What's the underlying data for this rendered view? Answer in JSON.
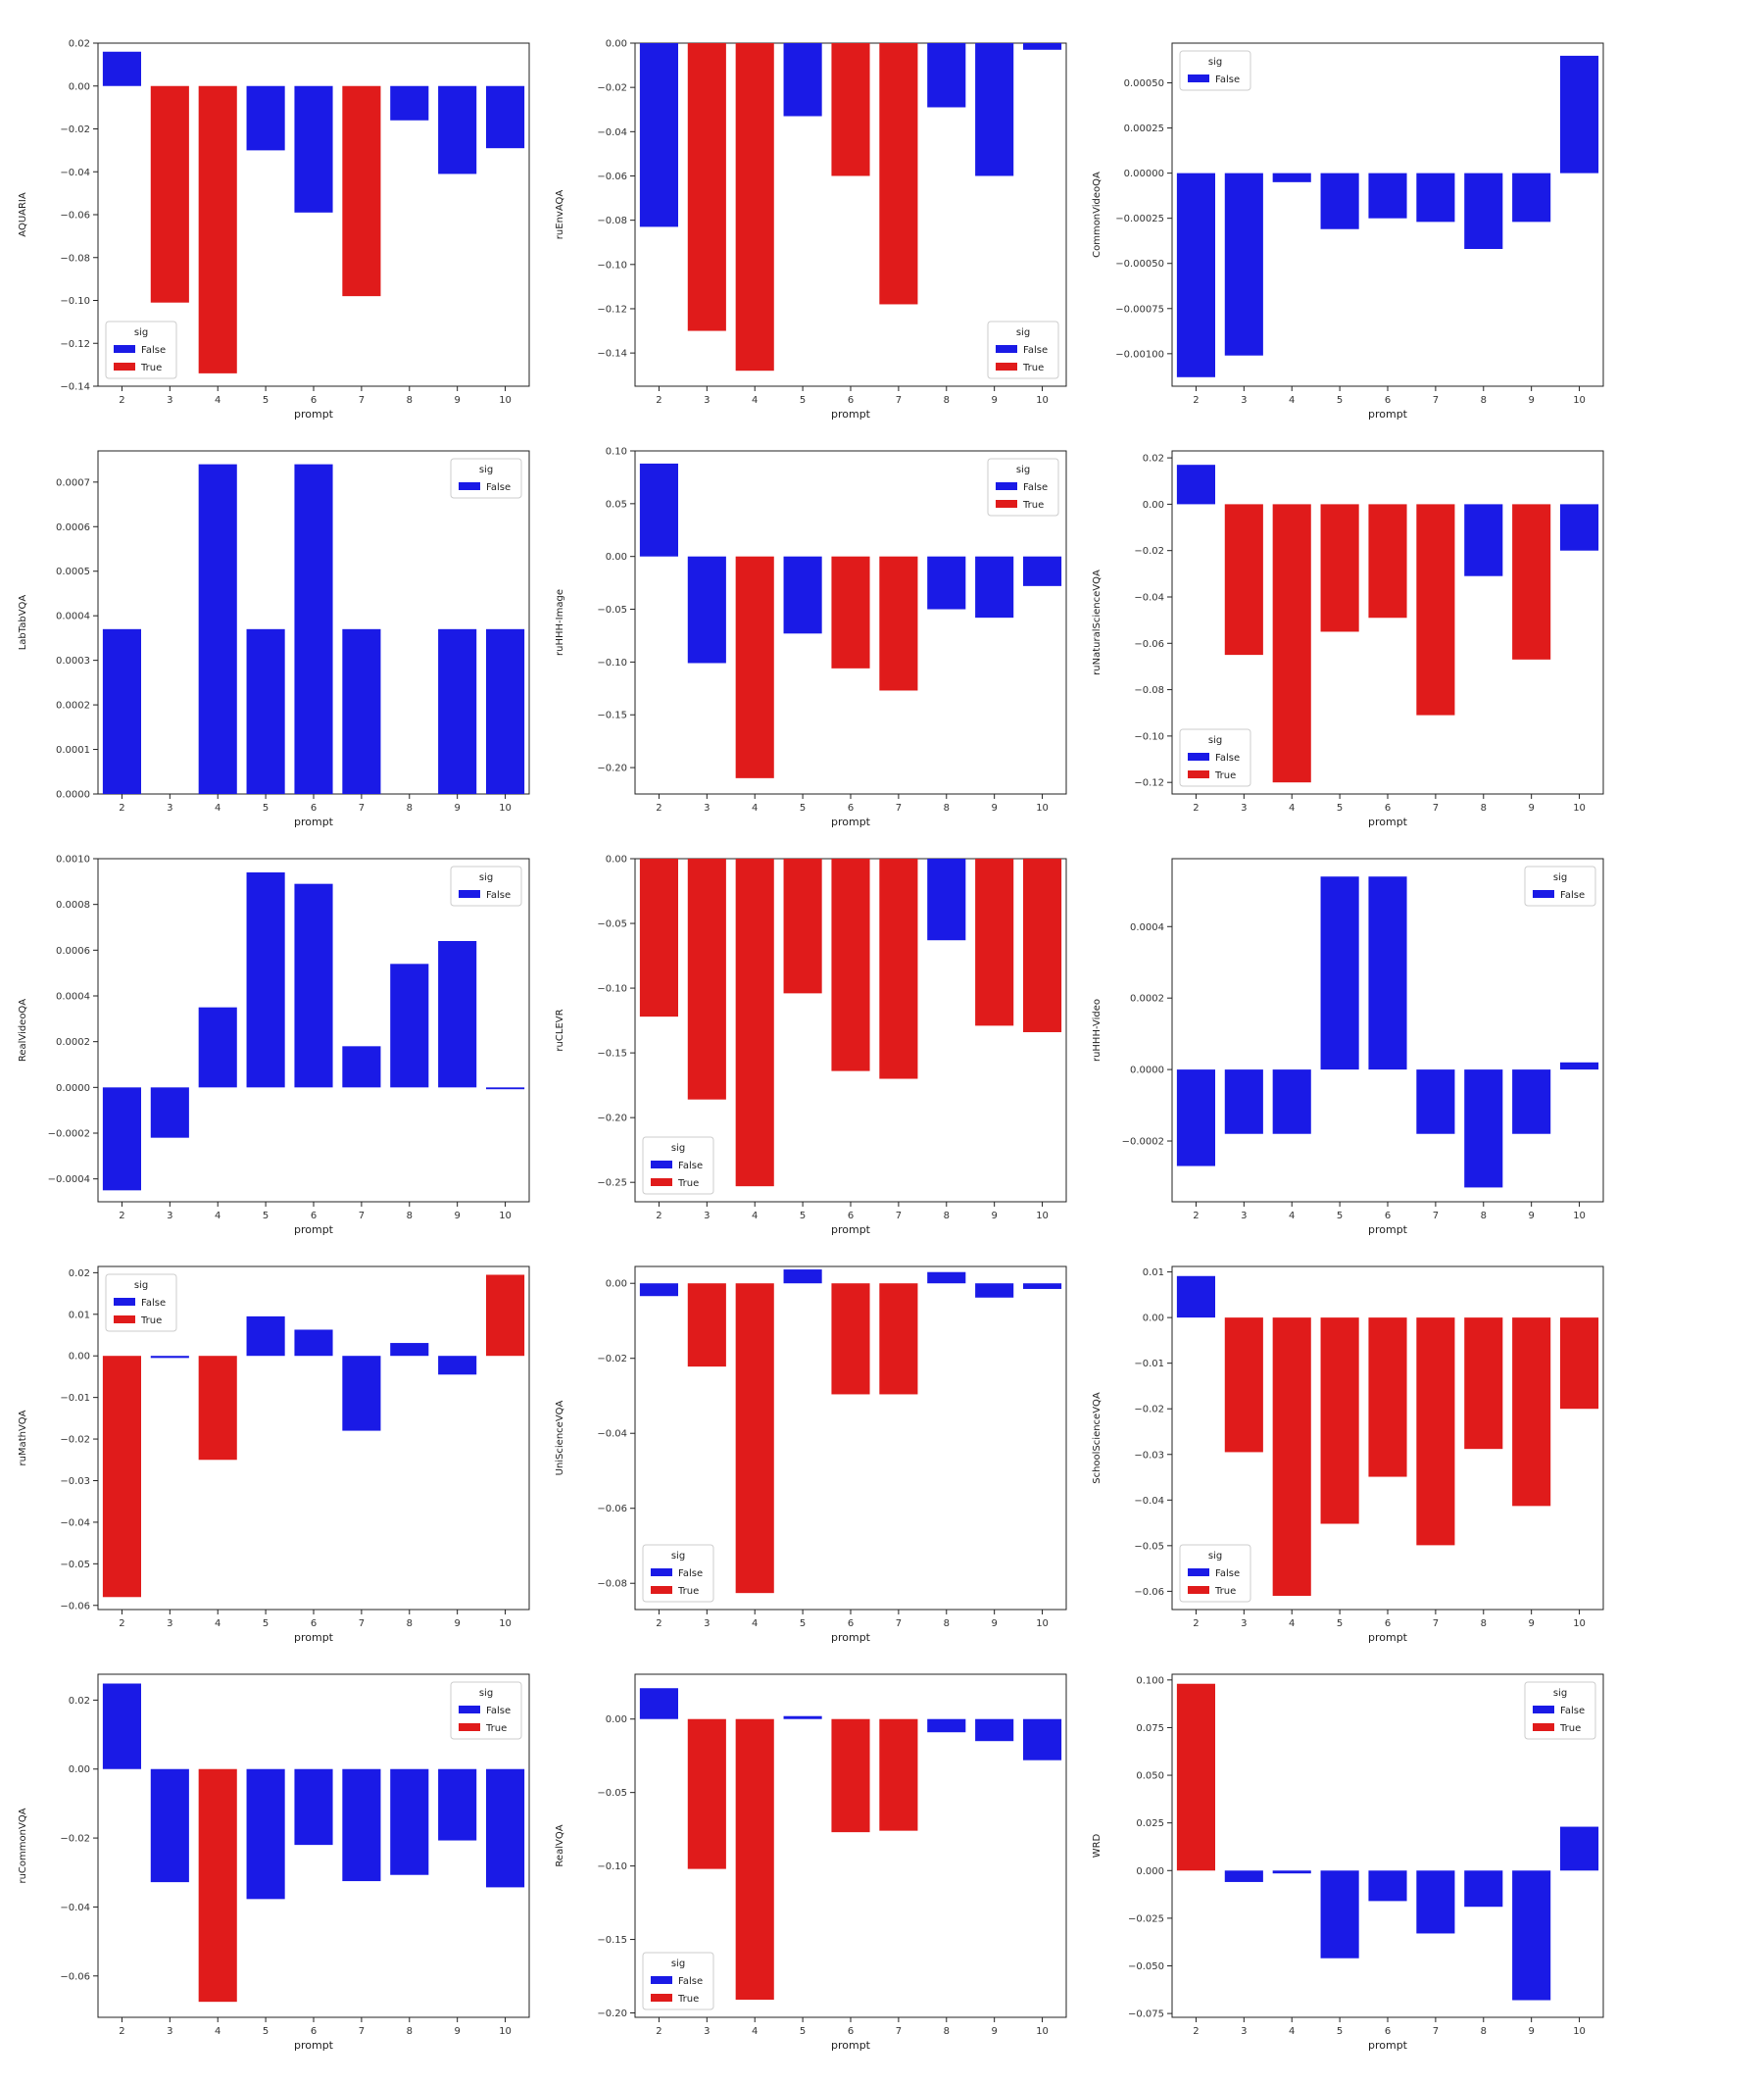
{
  "colors": {
    "false": "#1a1ae6",
    "true": "#e01b1b",
    "axis": "#222222",
    "legend_border": "#cccccc"
  },
  "legend_labels": {
    "title": "sig",
    "false": "False",
    "true": "True"
  },
  "chart_data": [
    {
      "type": "bar",
      "xlabel": "prompt",
      "ylabel": "AQUARIA",
      "categories": [
        "2",
        "3",
        "4",
        "5",
        "6",
        "7",
        "8",
        "9",
        "10"
      ],
      "values": [
        0.016,
        -0.101,
        -0.134,
        -0.03,
        -0.059,
        -0.098,
        -0.016,
        -0.041,
        -0.029
      ],
      "sig": [
        false,
        true,
        true,
        false,
        false,
        true,
        false,
        false,
        false
      ],
      "ylim": [
        -0.14,
        0.02
      ],
      "yticks": [
        0.02,
        0.0,
        -0.02,
        -0.04,
        -0.06,
        -0.08,
        -0.1,
        -0.12,
        -0.14
      ],
      "ytick_labels": [
        "0.02",
        "0.00",
        "−0.02",
        "−0.04",
        "−0.06",
        "−0.08",
        "−0.10",
        "−0.12",
        "−0.14"
      ],
      "legend": "lower-left",
      "legend_entries": [
        "false",
        "true"
      ]
    },
    {
      "type": "bar",
      "xlabel": "prompt",
      "ylabel": "ruEnvAQA",
      "categories": [
        "2",
        "3",
        "4",
        "5",
        "6",
        "7",
        "8",
        "9",
        "10"
      ],
      "values": [
        -0.083,
        -0.13,
        -0.148,
        -0.033,
        -0.06,
        -0.118,
        -0.029,
        -0.06,
        -0.003
      ],
      "sig": [
        false,
        true,
        true,
        false,
        true,
        true,
        false,
        false,
        false
      ],
      "ylim": [
        -0.155,
        0.0
      ],
      "yticks": [
        0.0,
        -0.02,
        -0.04,
        -0.06,
        -0.08,
        -0.1,
        -0.12,
        -0.14
      ],
      "ytick_labels": [
        "0.00",
        "−0.02",
        "−0.04",
        "−0.06",
        "−0.08",
        "−0.10",
        "−0.12",
        "−0.14"
      ],
      "legend": "lower-right",
      "legend_entries": [
        "false",
        "true"
      ]
    },
    {
      "type": "bar",
      "xlabel": "prompt",
      "ylabel": "CommonVideoQA",
      "categories": [
        "2",
        "3",
        "4",
        "5",
        "6",
        "7",
        "8",
        "9",
        "10"
      ],
      "values": [
        -0.00113,
        -0.00101,
        -5e-05,
        -0.00031,
        -0.00025,
        -0.00027,
        -0.00042,
        -0.00027,
        0.00065
      ],
      "sig": [
        false,
        false,
        false,
        false,
        false,
        false,
        false,
        false,
        false
      ],
      "ylim": [
        -0.00118,
        0.00072
      ],
      "yticks": [
        0.0005,
        0.00025,
        0.0,
        -0.00025,
        -0.0005,
        -0.00075,
        -0.001
      ],
      "ytick_labels": [
        "0.00050",
        "0.00025",
        "0.00000",
        "−0.00025",
        "−0.00050",
        "−0.00075",
        "−0.00100"
      ],
      "legend": "upper-left",
      "legend_entries": [
        "false"
      ]
    },
    {
      "type": "bar",
      "xlabel": "prompt",
      "ylabel": "LabTabVQA",
      "categories": [
        "2",
        "3",
        "4",
        "5",
        "6",
        "7",
        "8",
        "9",
        "10"
      ],
      "values": [
        0.00037,
        0.0,
        0.00074,
        0.00037,
        0.00074,
        0.00037,
        0.0,
        0.00037,
        0.00037
      ],
      "sig": [
        false,
        false,
        false,
        false,
        false,
        false,
        false,
        false,
        false
      ],
      "ylim": [
        0.0,
        0.00077
      ],
      "yticks": [
        0.0,
        0.0001,
        0.0002,
        0.0003,
        0.0004,
        0.0005,
        0.0006,
        0.0007
      ],
      "ytick_labels": [
        "0.0000",
        "0.0001",
        "0.0002",
        "0.0003",
        "0.0004",
        "0.0005",
        "0.0006",
        "0.0007"
      ],
      "legend": "upper-right",
      "legend_entries": [
        "false"
      ]
    },
    {
      "type": "bar",
      "xlabel": "prompt",
      "ylabel": "ruHHH-Image",
      "categories": [
        "2",
        "3",
        "4",
        "5",
        "6",
        "7",
        "8",
        "9",
        "10"
      ],
      "values": [
        0.088,
        -0.101,
        -0.21,
        -0.073,
        -0.106,
        -0.127,
        -0.05,
        -0.058,
        -0.028
      ],
      "sig": [
        false,
        false,
        true,
        false,
        true,
        true,
        false,
        false,
        false
      ],
      "ylim": [
        -0.225,
        0.1
      ],
      "yticks": [
        0.1,
        0.05,
        0.0,
        -0.05,
        -0.1,
        -0.15,
        -0.2
      ],
      "ytick_labels": [
        "0.10",
        "0.05",
        "0.00",
        "−0.05",
        "−0.10",
        "−0.15",
        "−0.20"
      ],
      "legend": "upper-right",
      "legend_entries": [
        "false",
        "true"
      ]
    },
    {
      "type": "bar",
      "xlabel": "prompt",
      "ylabel": "ruNaturalScienceVQA",
      "categories": [
        "2",
        "3",
        "4",
        "5",
        "6",
        "7",
        "8",
        "9",
        "10"
      ],
      "values": [
        0.017,
        -0.065,
        -0.12,
        -0.055,
        -0.049,
        -0.091,
        -0.031,
        -0.067,
        -0.02
      ],
      "sig": [
        false,
        true,
        true,
        true,
        true,
        true,
        false,
        true,
        false
      ],
      "ylim": [
        -0.125,
        0.023
      ],
      "yticks": [
        0.02,
        0.0,
        -0.02,
        -0.04,
        -0.06,
        -0.08,
        -0.1,
        -0.12
      ],
      "ytick_labels": [
        "0.02",
        "0.00",
        "−0.02",
        "−0.04",
        "−0.06",
        "−0.08",
        "−0.10",
        "−0.12"
      ],
      "legend": "lower-left",
      "legend_entries": [
        "false",
        "true"
      ]
    },
    {
      "type": "bar",
      "xlabel": "prompt",
      "ylabel": "RealVideoQA",
      "categories": [
        "2",
        "3",
        "4",
        "5",
        "6",
        "7",
        "8",
        "9",
        "10"
      ],
      "values": [
        -0.00045,
        -0.00022,
        0.00035,
        0.00094,
        0.00089,
        0.00018,
        0.00054,
        0.00064,
        -8e-06
      ],
      "sig": [
        false,
        false,
        false,
        false,
        false,
        false,
        false,
        false,
        false
      ],
      "ylim": [
        -0.0005,
        0.001
      ],
      "yticks": [
        0.001,
        0.0008,
        0.0006,
        0.0004,
        0.0002,
        0.0,
        -0.0002,
        -0.0004
      ],
      "ytick_labels": [
        "0.0010",
        "0.0008",
        "0.0006",
        "0.0004",
        "0.0002",
        "0.0000",
        "−0.0002",
        "−0.0004"
      ],
      "legend": "upper-right",
      "legend_entries": [
        "false"
      ]
    },
    {
      "type": "bar",
      "xlabel": "prompt",
      "ylabel": "ruCLEVR",
      "categories": [
        "2",
        "3",
        "4",
        "5",
        "6",
        "7",
        "8",
        "9",
        "10"
      ],
      "values": [
        -0.122,
        -0.186,
        -0.253,
        -0.104,
        -0.164,
        -0.17,
        -0.063,
        -0.129,
        -0.134
      ],
      "sig": [
        true,
        true,
        true,
        true,
        true,
        true,
        false,
        true,
        true
      ],
      "ylim": [
        -0.265,
        0.0
      ],
      "yticks": [
        0.0,
        -0.05,
        -0.1,
        -0.15,
        -0.2,
        -0.25
      ],
      "ytick_labels": [
        "0.00",
        "−0.05",
        "−0.10",
        "−0.15",
        "−0.20",
        "−0.25"
      ],
      "legend": "lower-left",
      "legend_entries": [
        "false",
        "true"
      ]
    },
    {
      "type": "bar",
      "xlabel": "prompt",
      "ylabel": "ruHHH-Video",
      "categories": [
        "2",
        "3",
        "4",
        "5",
        "6",
        "7",
        "8",
        "9",
        "10"
      ],
      "values": [
        -0.00027,
        -0.00018,
        -0.00018,
        0.00054,
        0.00054,
        -0.00018,
        -0.00033,
        -0.00018,
        2e-05
      ],
      "sig": [
        false,
        false,
        false,
        false,
        false,
        false,
        false,
        false,
        false
      ],
      "ylim": [
        -0.00037,
        0.00059
      ],
      "yticks": [
        0.0004,
        0.0002,
        0.0,
        -0.0002
      ],
      "ytick_labels": [
        "0.0004",
        "0.0002",
        "0.0000",
        "−0.0002"
      ],
      "legend": "upper-right",
      "legend_entries": [
        "false"
      ]
    },
    {
      "type": "bar",
      "xlabel": "prompt",
      "ylabel": "ruMathVQA",
      "categories": [
        "2",
        "3",
        "4",
        "5",
        "6",
        "7",
        "8",
        "9",
        "10"
      ],
      "values": [
        -0.058,
        -0.0005,
        -0.025,
        0.0095,
        0.0063,
        -0.018,
        0.0031,
        -0.0045,
        0.0195
      ],
      "sig": [
        true,
        false,
        true,
        false,
        false,
        false,
        false,
        false,
        true
      ],
      "ylim": [
        -0.061,
        0.0215
      ],
      "yticks": [
        0.02,
        0.01,
        0.0,
        -0.01,
        -0.02,
        -0.03,
        -0.04,
        -0.05,
        -0.06
      ],
      "ytick_labels": [
        "0.02",
        "0.01",
        "0.00",
        "−0.01",
        "−0.02",
        "−0.03",
        "−0.04",
        "−0.05",
        "−0.06"
      ],
      "legend": "upper-left",
      "legend_entries": [
        "false",
        "true"
      ]
    },
    {
      "type": "bar",
      "xlabel": "prompt",
      "ylabel": "UniScienceVQA",
      "categories": [
        "2",
        "3",
        "4",
        "5",
        "6",
        "7",
        "8",
        "9",
        "10"
      ],
      "values": [
        -0.0034,
        -0.0222,
        -0.0826,
        0.0037,
        -0.0296,
        -0.0296,
        0.003,
        -0.0038,
        -0.0015
      ],
      "sig": [
        false,
        true,
        true,
        false,
        true,
        true,
        false,
        false,
        false
      ],
      "ylim": [
        -0.087,
        0.0045
      ],
      "yticks": [
        0.0,
        -0.02,
        -0.04,
        -0.06,
        -0.08
      ],
      "ytick_labels": [
        "0.00",
        "−0.02",
        "−0.04",
        "−0.06",
        "−0.08"
      ],
      "legend": "lower-left",
      "legend_entries": [
        "false",
        "true"
      ]
    },
    {
      "type": "bar",
      "xlabel": "prompt",
      "ylabel": "SchoolScienceVQA",
      "categories": [
        "2",
        "3",
        "4",
        "5",
        "6",
        "7",
        "8",
        "9",
        "10"
      ],
      "values": [
        0.0091,
        -0.0295,
        -0.061,
        -0.0452,
        -0.0349,
        -0.0499,
        -0.0288,
        -0.0413,
        -0.02
      ],
      "sig": [
        false,
        true,
        true,
        true,
        true,
        true,
        true,
        true,
        true
      ],
      "ylim": [
        -0.064,
        0.0112
      ],
      "yticks": [
        0.01,
        0.0,
        -0.01,
        -0.02,
        -0.03,
        -0.04,
        -0.05,
        -0.06
      ],
      "ytick_labels": [
        "0.01",
        "0.00",
        "−0.01",
        "−0.02",
        "−0.03",
        "−0.04",
        "−0.05",
        "−0.06"
      ],
      "legend": "lower-left",
      "legend_entries": [
        "false",
        "true"
      ]
    },
    {
      "type": "bar",
      "xlabel": "prompt",
      "ylabel": "ruCommonVQA",
      "categories": [
        "2",
        "3",
        "4",
        "5",
        "6",
        "7",
        "8",
        "9",
        "10"
      ],
      "values": [
        0.0248,
        -0.0328,
        -0.0675,
        -0.0377,
        -0.022,
        -0.0325,
        -0.0307,
        -0.0207,
        -0.0343
      ],
      "sig": [
        false,
        false,
        true,
        false,
        false,
        false,
        false,
        false,
        false
      ],
      "ylim": [
        -0.072,
        0.0275
      ],
      "yticks": [
        0.02,
        0.0,
        -0.02,
        -0.04,
        -0.06
      ],
      "ytick_labels": [
        "0.02",
        "0.00",
        "−0.02",
        "−0.04",
        "−0.06"
      ],
      "legend": "upper-right",
      "legend_entries": [
        "false",
        "true"
      ]
    },
    {
      "type": "bar",
      "xlabel": "prompt",
      "ylabel": "RealVQA",
      "categories": [
        "2",
        "3",
        "4",
        "5",
        "6",
        "7",
        "8",
        "9",
        "10"
      ],
      "values": [
        0.021,
        -0.102,
        -0.191,
        0.002,
        -0.077,
        -0.076,
        -0.009,
        -0.015,
        -0.028
      ],
      "sig": [
        false,
        true,
        true,
        false,
        true,
        true,
        false,
        false,
        false
      ],
      "ylim": [
        -0.203,
        0.0305
      ],
      "yticks": [
        0.0,
        -0.05,
        -0.1,
        -0.15,
        -0.2
      ],
      "ytick_labels": [
        "0.00",
        "−0.05",
        "−0.10",
        "−0.15",
        "−0.20"
      ],
      "legend": "lower-left",
      "legend_entries": [
        "false",
        "true"
      ]
    },
    {
      "type": "bar",
      "xlabel": "prompt",
      "ylabel": "WRD",
      "categories": [
        "2",
        "3",
        "4",
        "5",
        "6",
        "7",
        "8",
        "9",
        "10"
      ],
      "values": [
        0.098,
        -0.006,
        -0.0015,
        -0.046,
        -0.016,
        -0.033,
        -0.019,
        -0.068,
        0.023
      ],
      "sig": [
        true,
        false,
        false,
        false,
        false,
        false,
        false,
        false,
        false
      ],
      "ylim": [
        -0.077,
        0.103
      ],
      "yticks": [
        0.1,
        0.075,
        0.05,
        0.025,
        0.0,
        -0.025,
        -0.05,
        -0.075
      ],
      "ytick_labels": [
        "0.100",
        "0.075",
        "0.050",
        "0.025",
        "0.000",
        "−0.025",
        "−0.050",
        "−0.075"
      ],
      "legend": "upper-right",
      "legend_entries": [
        "false",
        "true"
      ]
    }
  ]
}
